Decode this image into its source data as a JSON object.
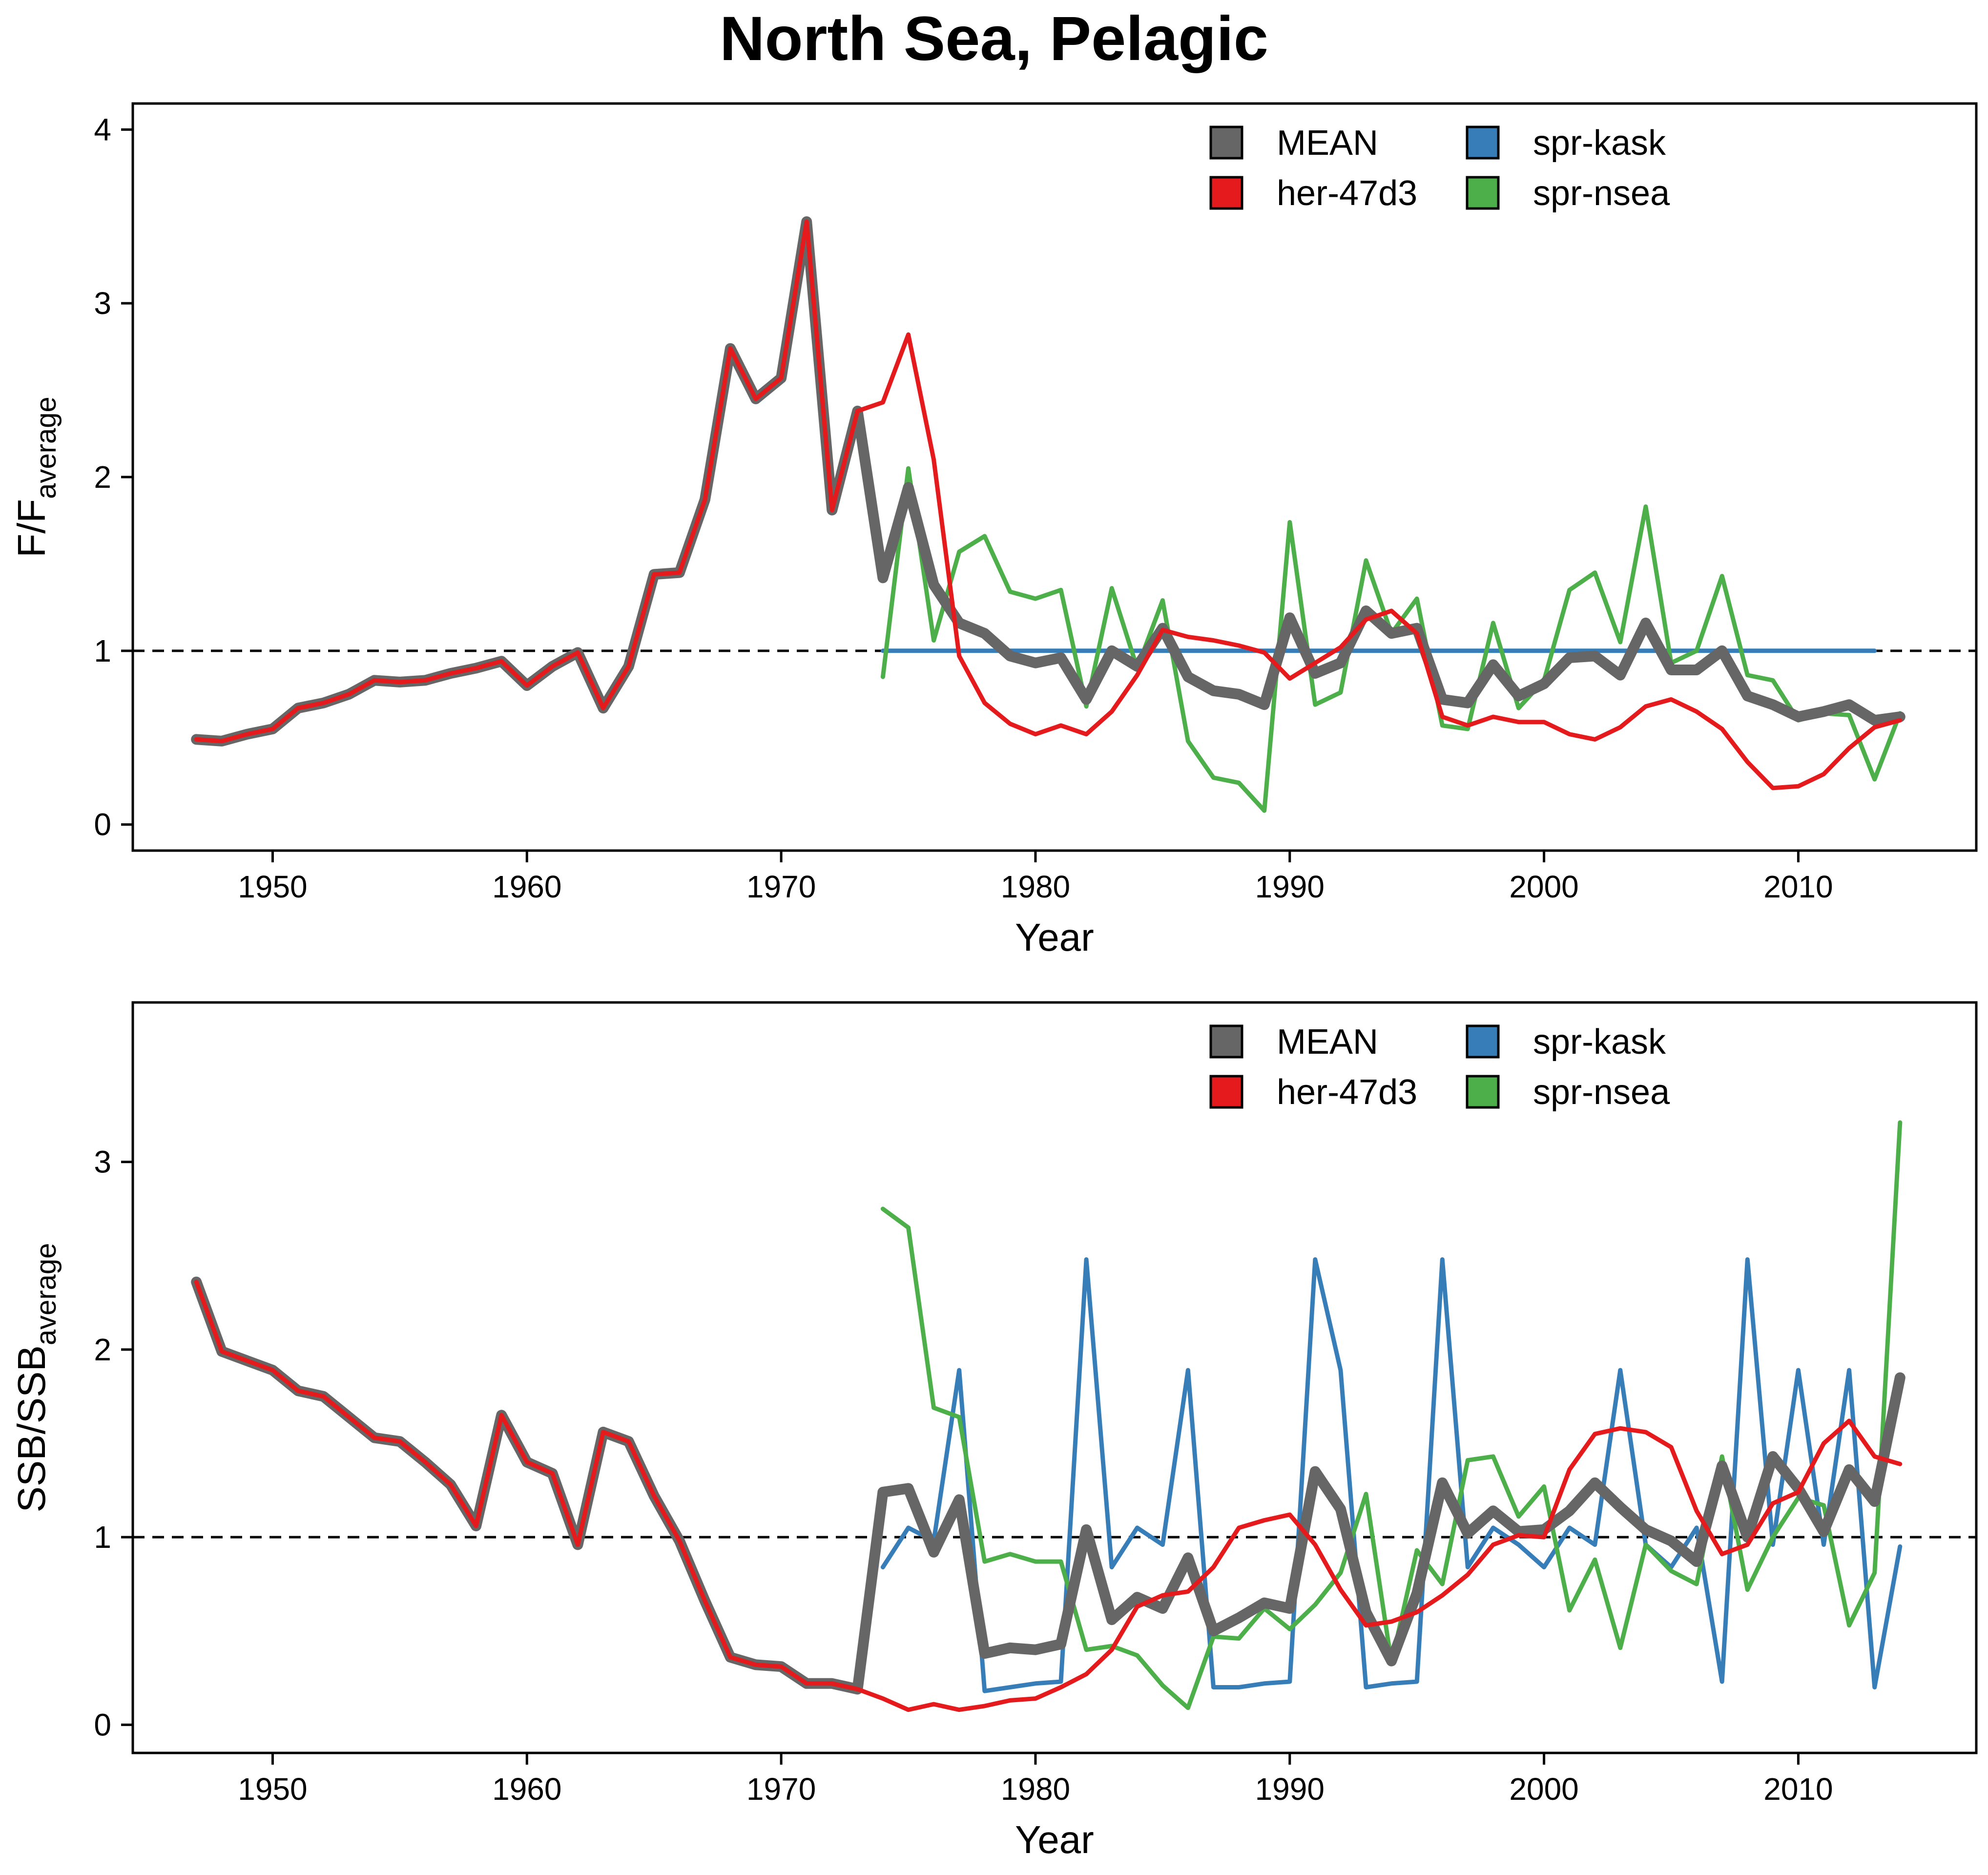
{
  "title": "North Sea, Pelagic",
  "colors": {
    "MEAN": "#666666",
    "her-47d3": "#e41a1c",
    "spr-kask": "#377eb8",
    "spr-nsea": "#4daf4a",
    "reference_line": "#000000"
  },
  "legend": {
    "items": [
      {
        "name": "MEAN",
        "color": "#666666"
      },
      {
        "name": "spr-kask",
        "color": "#377eb8"
      },
      {
        "name": "her-47d3",
        "color": "#e41a1c"
      },
      {
        "name": "spr-nsea",
        "color": "#4daf4a"
      }
    ],
    "placement": "top-right"
  },
  "chart_data": [
    {
      "type": "line",
      "ylabel_main": "F/F",
      "ylabel_sub": "average",
      "xlabel": "Year",
      "xlim": [
        1944.5,
        2017
      ],
      "ylim": [
        -0.15,
        4.15
      ],
      "xticks": [
        1950,
        1960,
        1970,
        1980,
        1990,
        2000,
        2010
      ],
      "yticks": [
        0,
        1,
        2,
        3,
        4
      ],
      "reference_line": 1,
      "grid": false,
      "legend_placement": "top-right",
      "series": [
        {
          "name": "spr-kask",
          "x_start": 1974,
          "values": [
            1.0,
            1.0,
            1.0,
            1.0,
            1.0,
            1.0,
            1.0,
            1.0,
            1.0,
            1.0,
            1.0,
            1.0,
            1.0,
            1.0,
            1.0,
            1.0,
            1.0,
            1.0,
            1.0,
            1.0,
            1.0,
            1.0,
            1.0,
            1.0,
            1.0,
            1.0,
            1.0,
            1.0,
            1.0,
            1.0,
            1.0,
            1.0,
            1.0,
            1.0,
            1.0,
            1.0,
            1.0,
            1.0,
            1.0,
            1.0
          ]
        },
        {
          "name": "spr-nsea",
          "x_start": 1974,
          "values": [
            0.85,
            2.05,
            1.06,
            1.57,
            1.66,
            1.34,
            1.3,
            1.35,
            0.68,
            1.36,
            0.9,
            1.29,
            0.48,
            0.27,
            0.24,
            0.08,
            1.74,
            0.69,
            0.76,
            1.52,
            1.1,
            1.3,
            0.57,
            0.55,
            1.16,
            0.67,
            0.83,
            1.35,
            1.45,
            1.05,
            1.83,
            0.93,
            1.0,
            1.43,
            0.86,
            0.83,
            0.6,
            0.64,
            0.63,
            0.26,
            0.64
          ]
        },
        {
          "name": "MEAN",
          "x_start": 1947,
          "values": [
            0.49,
            0.48,
            0.52,
            0.55,
            0.67,
            0.7,
            0.75,
            0.83,
            0.82,
            0.83,
            0.87,
            0.9,
            0.94,
            0.8,
            0.91,
            0.99,
            0.67,
            0.91,
            1.44,
            1.45,
            1.87,
            2.74,
            2.45,
            2.57,
            3.47,
            1.81,
            2.38,
            1.42,
            1.94,
            1.38,
            1.16,
            1.1,
            0.97,
            0.93,
            0.96,
            0.72,
            1.0,
            0.91,
            1.13,
            0.85,
            0.77,
            0.75,
            0.69,
            1.19,
            0.87,
            0.93,
            1.23,
            1.1,
            1.13,
            0.72,
            0.7,
            0.92,
            0.74,
            0.81,
            0.96,
            0.97,
            0.86,
            1.16,
            0.89,
            0.89,
            1.0,
            0.74,
            0.69,
            0.62,
            0.65,
            0.69,
            0.6,
            0.62
          ]
        },
        {
          "name": "her-47d3",
          "x_start": 1947,
          "values": [
            0.49,
            0.48,
            0.52,
            0.55,
            0.67,
            0.7,
            0.75,
            0.83,
            0.82,
            0.83,
            0.87,
            0.9,
            0.94,
            0.8,
            0.91,
            0.99,
            0.67,
            0.91,
            1.44,
            1.45,
            1.87,
            2.74,
            2.45,
            2.57,
            3.47,
            1.81,
            2.38,
            2.43,
            2.82,
            2.1,
            0.97,
            0.7,
            0.58,
            0.52,
            0.57,
            0.52,
            0.65,
            0.86,
            1.12,
            1.08,
            1.06,
            1.03,
            0.99,
            0.84,
            0.93,
            1.02,
            1.18,
            1.23,
            1.1,
            0.62,
            0.57,
            0.62,
            0.59,
            0.59,
            0.52,
            0.49,
            0.56,
            0.68,
            0.72,
            0.65,
            0.55,
            0.36,
            0.21,
            0.22,
            0.29,
            0.44,
            0.56,
            0.6
          ]
        }
      ]
    },
    {
      "type": "line",
      "ylabel_main": "SSB/SSB",
      "ylabel_sub": "average",
      "xlabel": "Year",
      "xlim": [
        1944.5,
        2017
      ],
      "ylim": [
        -0.15,
        3.85
      ],
      "xticks": [
        1950,
        1960,
        1970,
        1980,
        1990,
        2000,
        2010
      ],
      "yticks": [
        0,
        1,
        2,
        3
      ],
      "reference_line": 1,
      "grid": false,
      "legend_placement": "top-right",
      "series": [
        {
          "name": "spr-kask",
          "x_start": 1974,
          "values": [
            0.84,
            1.05,
            0.98,
            1.89,
            0.18,
            0.2,
            0.22,
            0.23,
            2.48,
            0.84,
            1.05,
            0.96,
            1.89,
            0.2,
            0.2,
            0.22,
            0.23,
            2.48,
            1.89,
            0.2,
            0.22,
            0.23,
            2.48,
            0.84,
            1.05,
            0.96,
            0.84,
            1.05,
            0.96,
            1.89,
            0.96,
            0.84,
            1.05,
            0.23,
            2.48,
            0.96,
            1.89,
            0.96,
            1.89,
            0.2,
            0.95
          ]
        },
        {
          "name": "spr-nsea",
          "x_start": 1974,
          "values": [
            2.75,
            2.65,
            1.69,
            1.64,
            0.87,
            0.91,
            0.87,
            0.87,
            0.4,
            0.42,
            0.37,
            0.21,
            0.09,
            0.47,
            0.46,
            0.62,
            0.51,
            0.64,
            0.81,
            1.23,
            0.33,
            0.93,
            0.75,
            1.41,
            1.43,
            1.11,
            1.27,
            0.61,
            0.88,
            0.41,
            0.96,
            0.82,
            0.75,
            1.43,
            0.72,
            1.0,
            1.21,
            1.17,
            0.53,
            0.81,
            3.21
          ]
        },
        {
          "name": "MEAN",
          "x_start": 1947,
          "values": [
            2.36,
            1.99,
            1.94,
            1.89,
            1.78,
            1.75,
            1.64,
            1.53,
            1.51,
            1.4,
            1.28,
            1.06,
            1.65,
            1.4,
            1.34,
            0.96,
            1.56,
            1.51,
            1.22,
            0.98,
            0.66,
            0.36,
            0.32,
            0.31,
            0.22,
            0.22,
            0.19,
            1.24,
            1.26,
            0.92,
            1.2,
            0.38,
            0.41,
            0.4,
            0.43,
            1.04,
            0.56,
            0.68,
            0.62,
            0.89,
            0.5,
            0.57,
            0.65,
            0.62,
            1.35,
            1.15,
            0.6,
            0.34,
            0.7,
            1.29,
            1.02,
            1.14,
            1.03,
            1.04,
            1.14,
            1.29,
            1.16,
            1.04,
            0.98,
            0.87,
            1.38,
            1.0,
            1.43,
            1.26,
            1.03,
            1.36,
            1.19,
            1.85
          ]
        },
        {
          "name": "her-47d3",
          "x_start": 1947,
          "values": [
            2.36,
            1.99,
            1.94,
            1.89,
            1.78,
            1.75,
            1.64,
            1.53,
            1.51,
            1.4,
            1.28,
            1.06,
            1.65,
            1.4,
            1.34,
            0.96,
            1.56,
            1.51,
            1.22,
            0.98,
            0.66,
            0.36,
            0.32,
            0.31,
            0.22,
            0.22,
            0.19,
            0.14,
            0.08,
            0.11,
            0.08,
            0.1,
            0.13,
            0.14,
            0.2,
            0.27,
            0.4,
            0.63,
            0.69,
            0.71,
            0.84,
            1.05,
            1.09,
            1.12,
            0.96,
            0.72,
            0.53,
            0.55,
            0.6,
            0.69,
            0.8,
            0.96,
            1.01,
            1.0,
            1.36,
            1.55,
            1.58,
            1.56,
            1.48,
            1.14,
            0.91,
            0.96,
            1.18,
            1.24,
            1.5,
            1.62,
            1.43,
            1.39
          ]
        }
      ]
    }
  ]
}
